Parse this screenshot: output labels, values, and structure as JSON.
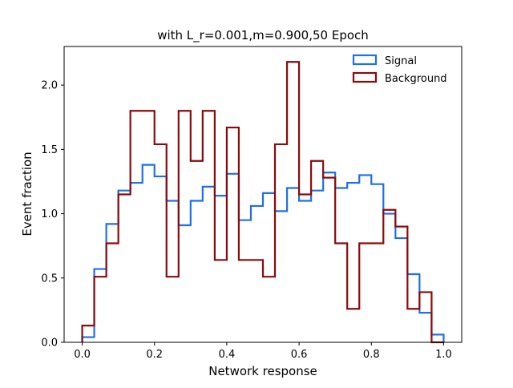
{
  "chart_data": {
    "type": "step-histogram",
    "title": "with L_r=0.001,m=0.900,50 Epoch",
    "xlabel": "Network response",
    "ylabel": "Event fraction",
    "xlim": [
      -0.05,
      1.05
    ],
    "ylim": [
      0,
      2.3
    ],
    "x_ticks": [
      "0.0",
      "0.2",
      "0.4",
      "0.6",
      "0.8",
      "1.0"
    ],
    "y_ticks": [
      "0.0",
      "0.5",
      "1.0",
      "1.5",
      "2.0"
    ],
    "grid": false,
    "legend_position": "top-right",
    "bin_edges": [
      0,
      0.0333,
      0.0667,
      0.1,
      0.1333,
      0.1667,
      0.2,
      0.2333,
      0.2667,
      0.3,
      0.3333,
      0.3667,
      0.4,
      0.4333,
      0.4667,
      0.5,
      0.5333,
      0.5667,
      0.6,
      0.6333,
      0.6667,
      0.7,
      0.7333,
      0.7667,
      0.8,
      0.8333,
      0.8667,
      0.9,
      0.9333,
      0.9667,
      1.0
    ],
    "series": [
      {
        "name": "Signal",
        "color": "#1f6fe8",
        "values": [
          0.04,
          0.57,
          0.92,
          1.18,
          1.24,
          1.38,
          1.29,
          1.1,
          0.91,
          1.1,
          1.21,
          1.14,
          1.31,
          0.95,
          1.06,
          1.16,
          1.02,
          1.2,
          1.1,
          1.18,
          1.32,
          1.2,
          1.24,
          1.3,
          1.23,
          1.0,
          0.81,
          0.53,
          0.23,
          0.06
        ]
      },
      {
        "name": "Background",
        "color": "#8b0b0b",
        "values": [
          0.13,
          0.51,
          0.77,
          1.15,
          1.8,
          1.8,
          1.54,
          0.51,
          1.8,
          1.41,
          1.8,
          0.64,
          1.67,
          0.64,
          0.64,
          0.51,
          1.54,
          2.18,
          1.15,
          1.41,
          1.28,
          0.77,
          0.26,
          0.77,
          0.77,
          1.03,
          0.9,
          0.26,
          0.39,
          0.0
        ]
      }
    ]
  }
}
